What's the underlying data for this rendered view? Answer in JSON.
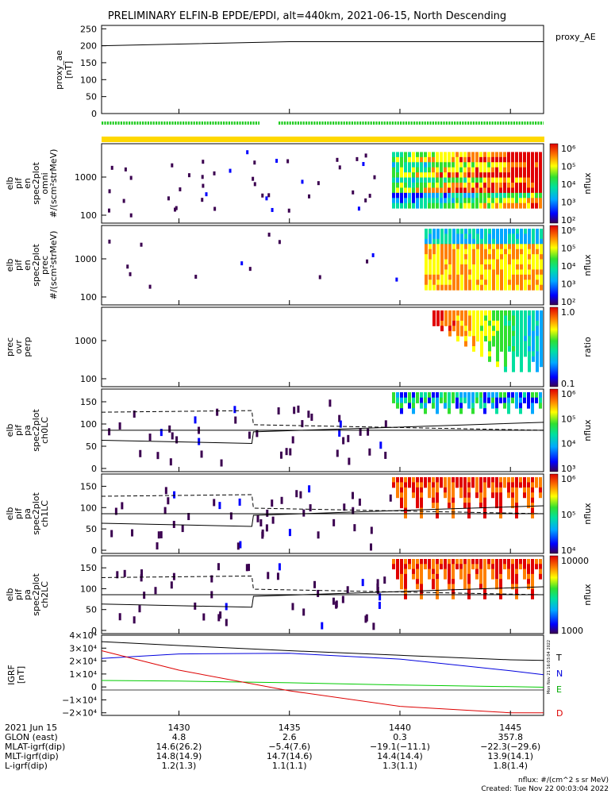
{
  "title": "PRELIMINARY ELFIN-B EPDE/EPDI, alt=440km, 2021-06-15, North Descending",
  "panels": {
    "ae": {
      "ylabel": [
        "proxy_ae",
        "[nT]"
      ],
      "legend": "proxy_AE",
      "yticks": [
        "250",
        "200",
        "150",
        "100",
        "50",
        "0"
      ]
    },
    "omni": {
      "ylabel": [
        "elb",
        "pif",
        "en",
        "spec2plot",
        "omni",
        "#/(scm²strMeV)"
      ],
      "cbar_label": "nflux"
    },
    "prec": {
      "ylabel": [
        "elb",
        "pif",
        "en",
        "spec2plot",
        "prec",
        "#/(scm²strMeV)"
      ],
      "cbar_label": "nflux"
    },
    "ratio": {
      "ylabel": [
        "prec",
        "ovr",
        "perp"
      ],
      "cbar_label": "ratio",
      "cbar_ticks": [
        "1.0",
        "0.1"
      ]
    },
    "ch0": {
      "ylabel": [
        "elb",
        "pif",
        "pa",
        "spec2plot",
        "ch0LC"
      ],
      "cbar_label": "nflux"
    },
    "ch1": {
      "ylabel": [
        "elb",
        "pif",
        "pa",
        "spec2plot",
        "ch1LC"
      ],
      "cbar_label": "nflux"
    },
    "ch2": {
      "ylabel": [
        "elb",
        "pif",
        "pa",
        "spec2plot",
        "ch2LC"
      ],
      "cbar_label": "nflux",
      "cbar_ticks": [
        "10000",
        "1000"
      ]
    },
    "igrf": {
      "ylabel": [
        "IGRF",
        "[nT]"
      ],
      "yticks": [
        "4×10⁴",
        "3×10⁴",
        "2×10⁴",
        "1×10⁴",
        "0",
        "−1×10⁴",
        "−2×10⁴"
      ],
      "legend": [
        "T",
        "N",
        "E",
        "D"
      ]
    }
  },
  "energy_ticks": [
    "1000",
    "100"
  ],
  "pa_ticks": [
    "150",
    "100",
    "50",
    "0"
  ],
  "cbar_exp_ticks": [
    "10⁶",
    "10⁵",
    "10⁴",
    "10³",
    "10²"
  ],
  "colors": {
    "T": "#000000",
    "N": "#0000dd",
    "E": "#00cc00",
    "D": "#dd0000",
    "fgm_bar": "#22cc22",
    "orbit_bar": "#ffd800"
  },
  "ephemeris": {
    "labels": [
      "2021 Jun 15",
      "GLON (east)",
      "MLAT-igrf(dip)",
      "MLT-igrf(dip)",
      "L-igrf(dip)"
    ],
    "ticks": [
      {
        "time": "1430",
        "glon": "4.8",
        "mlat": "14.6(26.2)",
        "mlt": "14.8(14.9)",
        "l": "1.2(1.3)"
      },
      {
        "time": "1435",
        "glon": "2.6",
        "mlat": "−5.4(7.6)",
        "mlt": "14.7(14.6)",
        "l": "1.1(1.1)"
      },
      {
        "time": "1440",
        "glon": "0.3",
        "mlat": "−19.1(−11.1)",
        "mlt": "14.4(14.4)",
        "l": "1.3(1.1)"
      },
      {
        "time": "1445",
        "glon": "357.8",
        "mlat": "−22.3(−29.6)",
        "mlt": "13.9(14.1)",
        "l": "1.8(1.4)"
      }
    ]
  },
  "footer": {
    "units": "nflux: #/(cm^2 s sr MeV)",
    "created": "Created: Tue Nov 22 00:03:04 2022"
  },
  "sidestamp": "Mon Nov 21 16:03:04 2022",
  "chart_data": [
    {
      "type": "line",
      "title": "",
      "ylabel": "proxy_ae [nT]",
      "ylim": [
        0,
        260
      ],
      "x": [
        "14:26.5",
        "14:30",
        "14:35",
        "14:40",
        "14:45",
        "14:46.5"
      ],
      "series": [
        {
          "name": "proxy_AE",
          "values": [
            200,
            205,
            212,
            212,
            212,
            212
          ]
        }
      ]
    },
    {
      "type": "line",
      "title": "",
      "ylabel": "IGRF [nT]",
      "ylim": [
        -22000,
        40000
      ],
      "x": [
        "14:26.5",
        "14:30",
        "14:35",
        "14:40",
        "14:45",
        "14:46.5"
      ],
      "series": [
        {
          "name": "T",
          "values": [
            35000,
            32000,
            28000,
            24500,
            21000,
            20500
          ]
        },
        {
          "name": "N",
          "values": [
            22000,
            25500,
            26000,
            21500,
            12500,
            9500
          ]
        },
        {
          "name": "E",
          "values": [
            5000,
            4500,
            3200,
            1500,
            200,
            -200
          ]
        },
        {
          "name": "D",
          "values": [
            28000,
            13000,
            -3000,
            -15000,
            -20000,
            -20000
          ]
        }
      ]
    }
  ]
}
